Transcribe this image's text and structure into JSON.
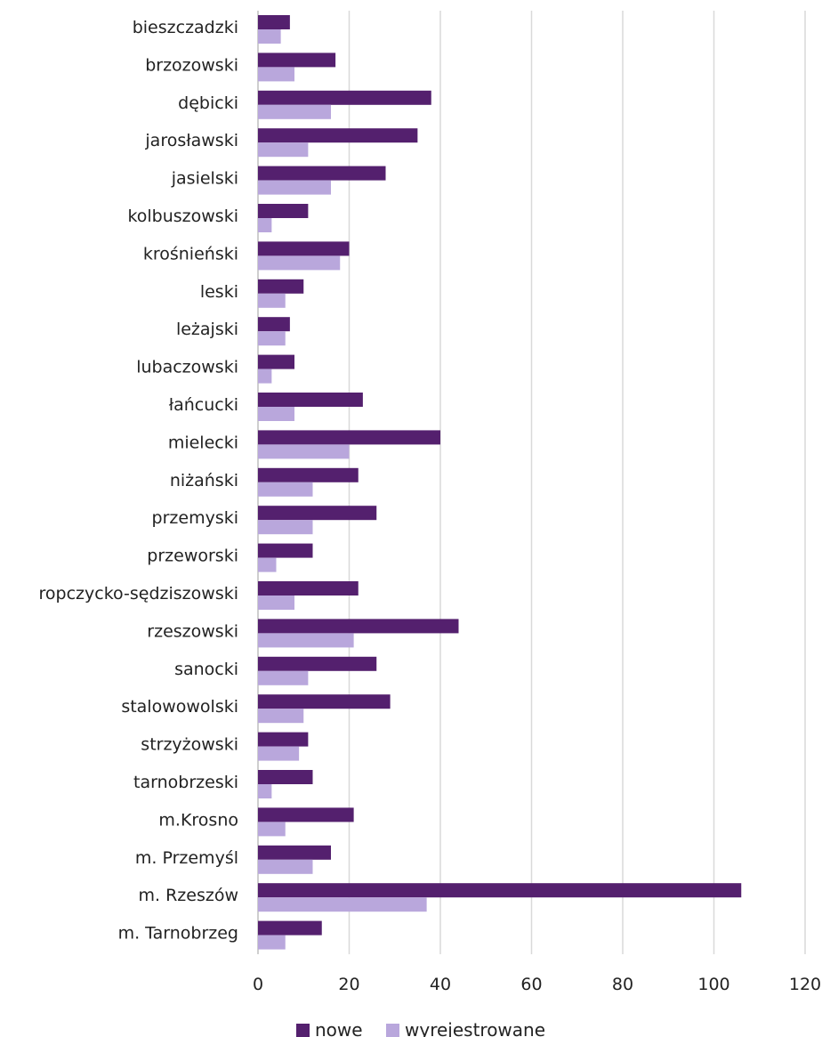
{
  "chart_data": {
    "type": "bar",
    "orientation": "horizontal",
    "categories": [
      "bieszczadzki",
      "brzozowski",
      "dębicki",
      "jarosławski",
      "jasielski",
      "kolbuszowski",
      "krośnieński",
      "leski",
      "leżajski",
      "lubaczowski",
      "łańcucki",
      "mielecki",
      "niżański",
      "przemyski",
      "przeworski",
      "ropczycko-sędziszowski",
      "rzeszowski",
      "sanocki",
      "stalowowolski",
      "strzyżowski",
      "tarnobrzeski",
      "m.Krosno",
      "m. Przemyśl",
      "m. Rzeszów",
      "m. Tarnobrzeg"
    ],
    "series": [
      {
        "name": "nowe",
        "color": "#54206e",
        "values": [
          7,
          17,
          38,
          35,
          28,
          11,
          20,
          10,
          7,
          8,
          23,
          40,
          22,
          26,
          12,
          22,
          44,
          26,
          29,
          11,
          12,
          21,
          16,
          106,
          14
        ]
      },
      {
        "name": "wyrejestrowane",
        "color": "#b9a7dc",
        "values": [
          5,
          8,
          16,
          11,
          16,
          3,
          18,
          6,
          6,
          3,
          8,
          20,
          12,
          12,
          4,
          8,
          21,
          11,
          10,
          9,
          3,
          6,
          12,
          37,
          6
        ]
      }
    ],
    "xlim": [
      0,
      120
    ],
    "xticks": [
      0,
      20,
      40,
      60,
      80,
      100,
      120
    ],
    "grid": true,
    "legend_position": "bottom",
    "title": "",
    "xlabel": "",
    "ylabel": ""
  }
}
